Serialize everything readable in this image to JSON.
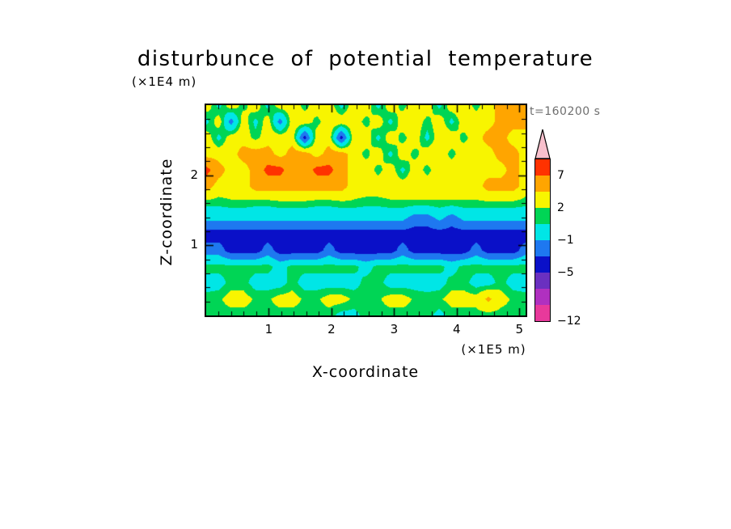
{
  "title": "disturbunce of potential temperature",
  "time_label": "t=160200 s",
  "axes": {
    "x_label": "X-coordinate",
    "x_unit": "(×1E5 m)",
    "x_ticks": [
      1,
      2,
      3,
      4,
      5
    ],
    "x_range": [
      0,
      5.1
    ],
    "x_minor_step": 0.2,
    "z_label": "Z-coordinate",
    "z_unit": "(×1E4 m)",
    "z_ticks": [
      1,
      2
    ],
    "z_range": [
      0,
      3.0
    ],
    "z_minor_step": 0.2
  },
  "colorbar": {
    "tick_labels": [
      "7",
      "2",
      "−1",
      "−5",
      "−12"
    ],
    "tick_values": [
      7,
      2,
      -1,
      -5,
      -12
    ]
  },
  "chart_data": {
    "type": "heatmap",
    "title": "disturbunce of potential temperature",
    "xlabel": "X-coordinate (×1E5 m)",
    "ylabel": "Z-coordinate (×1E4 m)",
    "time": "t=160200 s",
    "x_range": [
      0,
      5.1
    ],
    "z_range": [
      0,
      3.0
    ],
    "levels": [
      -12,
      -9,
      -7,
      -5,
      -3,
      -1,
      1,
      2,
      4,
      7,
      10
    ],
    "band_colors": [
      "#e8399b",
      "#b030c0",
      "#6a30c0",
      "#0a10c8",
      "#1e78f0",
      "#00e6e6",
      "#00d555",
      "#f8f500",
      "#ffa500",
      "#ff3200"
    ],
    "over_color": "#f8c0cc",
    "grid_rows": "bottom-to-top",
    "grid": [
      [
        1.5,
        1.5,
        1.5,
        1.5,
        1.5,
        1.5,
        1.5,
        1.5,
        1.5,
        1.5,
        1.5,
        0.5,
        0.5,
        1.5,
        1.5,
        1.5,
        1.5,
        1.5,
        1.5,
        0.5,
        1.5,
        1.5,
        1.5,
        1.5,
        1.5,
        1.5,
        1.5
      ],
      [
        1.5,
        1.8,
        2.6,
        2.6,
        1.8,
        1.8,
        2.6,
        2.6,
        1.8,
        1.8,
        2.6,
        2.6,
        1.8,
        1.5,
        1.8,
        2.6,
        2.6,
        1.8,
        1.5,
        1.8,
        2.6,
        2.6,
        2.6,
        4.5,
        2.6,
        1.8,
        1.5
      ],
      [
        0.3,
        0.3,
        1.5,
        1.5,
        0.3,
        0.3,
        0.3,
        1.5,
        0.3,
        0.3,
        0.3,
        0.3,
        0.3,
        1.5,
        1.5,
        0.3,
        0.3,
        0.3,
        0.3,
        0.3,
        1.5,
        1.5,
        0.3,
        0.3,
        1.5,
        0.3,
        0.3
      ],
      [
        1.5,
        1.5,
        1.5,
        1.5,
        1.5,
        1.5,
        0.3,
        1.5,
        1.5,
        1.5,
        1.5,
        1.5,
        1.5,
        0.3,
        1.5,
        1.5,
        1.5,
        1.5,
        1.5,
        1.5,
        0.3,
        1.5,
        1.5,
        1.5,
        1.5,
        1.5,
        1.5
      ],
      [
        -2,
        -2,
        -4,
        -4,
        -4,
        -2,
        -4,
        -4,
        -4,
        -4,
        -2,
        -4,
        -4,
        -4,
        -4,
        -4,
        -2,
        -4,
        -4,
        -4,
        -4,
        -4,
        -2,
        -4,
        -4,
        -4,
        -2
      ],
      [
        -4,
        -4,
        -4,
        -4,
        -4,
        -4,
        -4,
        -4,
        -4,
        -4,
        -4,
        -4,
        -4,
        -4,
        -4,
        -4,
        -4,
        -4,
        -4,
        -4,
        -4,
        -4,
        -4,
        -4,
        -4,
        -4,
        -4
      ],
      [
        -0.5,
        -0.5,
        -0.5,
        -0.5,
        -0.5,
        -0.5,
        -0.5,
        -0.5,
        -0.5,
        -0.5,
        -0.5,
        -0.5,
        -0.5,
        -0.5,
        -0.5,
        -0.5,
        -0.5,
        -2,
        -2,
        -0.5,
        -2,
        -0.5,
        -0.5,
        -0.5,
        -0.5,
        -0.5,
        -0.5
      ],
      [
        1.5,
        1.5,
        1.8,
        1.8,
        1.5,
        1.5,
        1.8,
        1.8,
        1.8,
        1.5,
        1.5,
        1.8,
        1.8,
        1.5,
        1.5,
        1.8,
        1.8,
        1.8,
        1.8,
        1.8,
        1.8,
        1.8,
        1.8,
        1.8,
        1.8,
        1.8,
        1.5
      ],
      [
        5,
        3,
        3,
        3,
        5,
        5,
        5,
        5,
        5,
        5,
        5,
        5,
        3,
        3,
        3,
        3,
        3,
        3,
        3,
        3,
        3,
        3,
        3,
        5,
        5,
        5,
        3
      ],
      [
        8,
        5,
        3,
        3,
        5,
        8,
        8,
        5,
        5,
        8,
        8,
        5,
        3,
        3,
        1.5,
        3,
        0.5,
        3,
        1.5,
        3,
        3,
        3,
        3,
        3,
        3,
        5,
        3
      ],
      [
        3,
        3,
        3,
        5,
        5,
        5,
        3,
        5,
        5,
        3,
        5,
        5,
        3,
        1.5,
        3,
        0.5,
        3,
        1.5,
        3,
        3,
        1.5,
        3,
        3,
        3,
        5,
        5,
        3
      ],
      [
        3,
        0.5,
        3,
        3,
        1.5,
        3,
        3,
        3,
        -4,
        3,
        3,
        -4,
        3,
        3,
        0.5,
        3,
        1.5,
        3,
        0.5,
        3,
        3,
        1.5,
        3,
        5,
        5,
        3,
        3
      ],
      [
        0.5,
        3,
        -2,
        3,
        0.5,
        3,
        -2,
        3,
        3,
        1.5,
        3,
        3,
        3,
        1.5,
        3,
        0.5,
        3,
        3,
        1.5,
        3,
        0.5,
        3,
        3,
        3,
        5,
        5,
        5
      ],
      [
        3,
        0.5,
        3,
        1.5,
        3,
        0.5,
        3,
        3,
        1.5,
        3,
        3,
        0.5,
        3,
        3,
        0.5,
        3,
        1.5,
        3,
        3,
        0.5,
        3,
        3,
        1.5,
        3,
        5,
        5,
        5
      ]
    ]
  }
}
